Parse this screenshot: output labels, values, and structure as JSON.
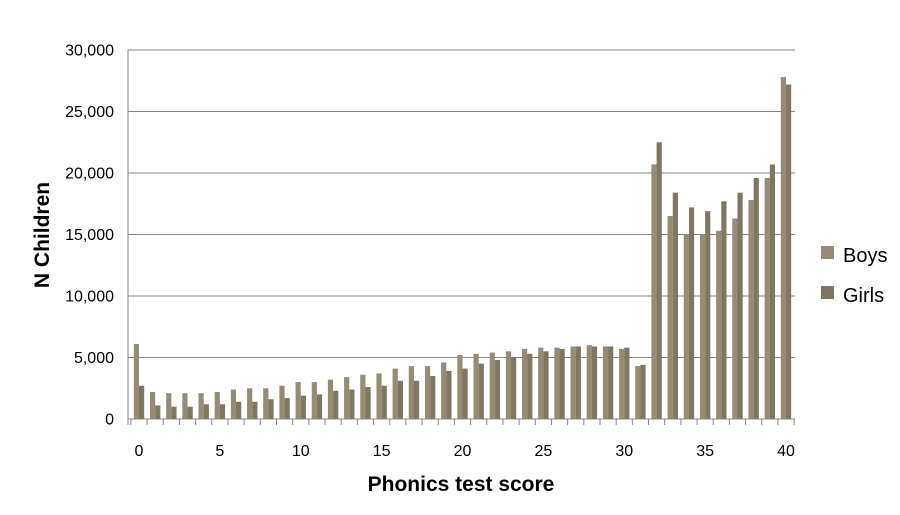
{
  "chart_data": {
    "type": "bar",
    "title": "",
    "xlabel": "Phonics test score",
    "ylabel": "N Children",
    "ylim": [
      0,
      30000
    ],
    "y_ticks": [
      0,
      5000,
      10000,
      15000,
      20000,
      25000,
      30000
    ],
    "y_tick_labels": [
      "0",
      "5,000",
      "10,000",
      "15,000",
      "20,000",
      "25,000",
      "30,000"
    ],
    "x_tick_labels": [
      "0",
      "5",
      "10",
      "15",
      "20",
      "25",
      "30",
      "35",
      "40"
    ],
    "x_tick_values": [
      0,
      5,
      10,
      15,
      20,
      25,
      30,
      35,
      40
    ],
    "categories": [
      0,
      1,
      2,
      3,
      4,
      5,
      6,
      7,
      8,
      9,
      10,
      11,
      12,
      13,
      14,
      15,
      16,
      17,
      18,
      19,
      20,
      21,
      22,
      23,
      24,
      25,
      26,
      27,
      28,
      29,
      30,
      31,
      32,
      33,
      34,
      35,
      36,
      37,
      38,
      39,
      40
    ],
    "series": [
      {
        "name": "Boys",
        "color": "#958b76",
        "values": [
          6100,
          2200,
          2100,
          2100,
          2100,
          2200,
          2400,
          2500,
          2500,
          2700,
          3000,
          3000,
          3200,
          3400,
          3600,
          3700,
          4100,
          4300,
          4300,
          4600,
          5200,
          5300,
          5400,
          5500,
          5700,
          5800,
          5800,
          5900,
          6000,
          5900,
          5700,
          4300,
          20700,
          16500,
          15000,
          15000,
          15300,
          16300,
          17800,
          19600,
          27800
        ]
      },
      {
        "name": "Girls",
        "color": "#7f7761",
        "values": [
          2700,
          1100,
          1000,
          1000,
          1200,
          1200,
          1400,
          1400,
          1600,
          1700,
          1900,
          2000,
          2300,
          2400,
          2600,
          2700,
          3100,
          3100,
          3500,
          3900,
          4100,
          4500,
          4800,
          5000,
          5300,
          5500,
          5700,
          5900,
          5900,
          5900,
          5800,
          4400,
          22500,
          18400,
          17200,
          16900,
          17700,
          18400,
          19600,
          20700,
          27200
        ]
      }
    ],
    "grid": true,
    "legend_position": "right"
  }
}
